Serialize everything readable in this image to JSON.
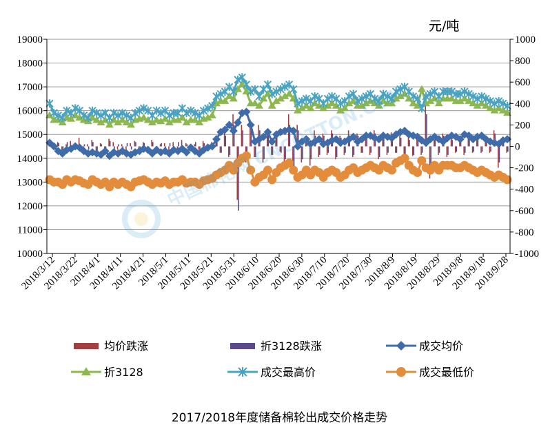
{
  "caption": "2017/2018年度储备棉轮出成交价格走势",
  "watermark": "中国棉花网 CNCOTTON.COM",
  "chart_data": {
    "type": "line",
    "unit_label": "元/吨",
    "ylim_left": [
      10000,
      19000
    ],
    "ylim_right": [
      -1000,
      1000
    ],
    "yticks_left": [
      10000,
      11000,
      12000,
      13000,
      14000,
      15000,
      16000,
      17000,
      18000,
      19000
    ],
    "yticks_right": [
      -1000,
      -800,
      -600,
      -400,
      -200,
      0,
      200,
      400,
      600,
      800,
      1000
    ],
    "x_tick_labels": [
      "2018/3/12",
      "2018/3/22",
      "2018/4/1",
      "2018/4/11",
      "2018/4/21",
      "2018/5/1",
      "2018/5/11",
      "2018/5/21",
      "2018/5/31",
      "2018/6/10",
      "2018/6/20",
      "2018/6/30",
      "2018/7/10",
      "2018/7/20",
      "2018/7/30",
      "2018/8/9",
      "2018/8/19",
      "2018/8/29",
      "2018/9/8",
      "2018/9/18",
      "2018/9/28"
    ],
    "grid": true,
    "legend_position": "bottom",
    "series": [
      {
        "name": "均价跌涨",
        "axis": "right",
        "kind": "bar",
        "color": "#a0403f",
        "values": [
          30,
          -20,
          40,
          -60,
          20,
          50,
          -30,
          80,
          -40,
          20,
          60,
          -50,
          30,
          -20,
          70,
          40,
          -30,
          20,
          -60,
          30,
          50,
          -20,
          40,
          -30,
          60,
          -40,
          20,
          30,
          -50,
          40,
          -20,
          60,
          30,
          -40,
          20,
          -30,
          50,
          -20,
          40,
          100,
          -60,
          150,
          -100,
          300,
          -500,
          200,
          -150,
          250,
          -100,
          200,
          -150,
          120,
          -80,
          100,
          -50,
          -180,
          300,
          -250,
          200,
          -150,
          100,
          -180,
          150,
          -100,
          120,
          -80,
          150,
          -120,
          100,
          -80,
          150,
          -100,
          120,
          -60,
          100,
          -80,
          150,
          -120,
          100,
          -80,
          130,
          -60,
          100,
          -120,
          80,
          -90,
          120,
          -80,
          400,
          -300,
          100,
          -80,
          120,
          -100,
          80,
          -60,
          100,
          -80,
          120,
          -60,
          80,
          -60,
          100,
          -60,
          150,
          -200,
          80,
          -60
        ]
      },
      {
        "name": "折3128跌涨",
        "axis": "right",
        "kind": "bar",
        "color": "#5b4a8a",
        "values": [
          20,
          -30,
          30,
          -40,
          40,
          -20,
          30,
          -50,
          20,
          -30,
          40,
          -40,
          20,
          -30,
          50,
          -30,
          20,
          -40,
          30,
          -30,
          40,
          -30,
          30,
          -40,
          40,
          -20,
          30,
          -50,
          30,
          -30,
          40,
          -30,
          20,
          -40,
          40,
          -30,
          30,
          -40,
          30,
          80,
          -60,
          100,
          -80,
          200,
          -600,
          150,
          -120,
          180,
          -100,
          150,
          -120,
          100,
          -80,
          90,
          -60,
          -120,
          200,
          -200,
          150,
          -120,
          80,
          -120,
          100,
          -80,
          100,
          -60,
          120,
          -100,
          80,
          -60,
          100,
          -80,
          100,
          -60,
          80,
          -60,
          120,
          -100,
          80,
          -60,
          100,
          -60,
          80,
          -100,
          60,
          -80,
          100,
          -60,
          300,
          -250,
          80,
          -60,
          100,
          -80,
          60,
          -50,
          80,
          -60,
          100,
          -50,
          60,
          -50,
          80,
          -50,
          120,
          -150,
          60,
          -50
        ]
      },
      {
        "name": "成交均价",
        "axis": "left",
        "kind": "line",
        "color": "#3f6ca8",
        "marker": "diamond",
        "values": [
          14650,
          14500,
          14300,
          14200,
          14350,
          14400,
          14500,
          14450,
          14300,
          14200,
          14250,
          14200,
          14150,
          14300,
          14100,
          14250,
          14200,
          14300,
          14200,
          14150,
          14250,
          14300,
          14400,
          14350,
          14200,
          14350,
          14250,
          14300,
          14200,
          14350,
          14300,
          14400,
          14250,
          14450,
          14300,
          14200,
          14350,
          14450,
          14500,
          14800,
          15100,
          15200,
          15400,
          15150,
          15500,
          15900,
          15950,
          15400,
          14700,
          14800,
          14900,
          15100,
          14700,
          15000,
          15100,
          15150,
          15200,
          15150,
          14500,
          14700,
          14800,
          14600,
          14700,
          14800,
          14600,
          14650,
          14750,
          14800,
          14650,
          14700,
          14800,
          14900,
          14700,
          14800,
          14950,
          14950,
          14850,
          14800,
          14950,
          14900,
          14850,
          15000,
          15100,
          15150,
          15000,
          14950,
          14900,
          14750,
          14650,
          14800,
          14900,
          14800,
          14700,
          14850,
          14950,
          14900,
          14800,
          15000,
          14950,
          14800,
          14900,
          14950,
          14800,
          14700,
          14650,
          14600,
          14750,
          14800
        ]
      },
      {
        "name": "折3128",
        "axis": "left",
        "kind": "line",
        "color": "#8db84f",
        "marker": "triangle",
        "values": [
          15800,
          15600,
          15600,
          15500,
          15700,
          15650,
          15800,
          15700,
          15600,
          15550,
          15700,
          15600,
          15500,
          15600,
          15400,
          15600,
          15500,
          15600,
          15500,
          15400,
          15600,
          15650,
          15700,
          15600,
          15500,
          15600,
          15550,
          15650,
          15500,
          15600,
          15600,
          15700,
          15500,
          15600,
          15600,
          15500,
          15650,
          15700,
          15800,
          16300,
          16400,
          16400,
          16600,
          16500,
          16900,
          17100,
          16800,
          16300,
          16300,
          16200,
          16500,
          16700,
          16200,
          16400,
          16500,
          16600,
          16700,
          16500,
          16000,
          16100,
          16200,
          16100,
          16300,
          16200,
          16100,
          16200,
          16300,
          16200,
          16000,
          16100,
          16300,
          16400,
          16200,
          16200,
          16300,
          16400,
          16300,
          16200,
          16400,
          16300,
          16300,
          16500,
          16600,
          16700,
          16500,
          16300,
          16200,
          16900,
          16300,
          16400,
          16500,
          16300,
          16500,
          16500,
          16500,
          16400,
          16400,
          16500,
          16400,
          16300,
          16200,
          16300,
          16200,
          16100,
          16000,
          16100,
          16000,
          15900
        ]
      },
      {
        "name": "成交最高价",
        "axis": "left",
        "kind": "line",
        "color": "#4aa3c0",
        "marker": "star",
        "values": [
          16300,
          15900,
          15800,
          15700,
          16000,
          15900,
          16100,
          16000,
          15800,
          15700,
          16000,
          15900,
          15800,
          15900,
          15700,
          15900,
          15800,
          15900,
          15800,
          15700,
          15900,
          16000,
          16100,
          16000,
          15800,
          16000,
          15900,
          16000,
          15800,
          15900,
          15900,
          16100,
          15900,
          16000,
          15900,
          15800,
          16000,
          16100,
          16200,
          16600,
          16700,
          16800,
          17000,
          16800,
          17300,
          17400,
          17100,
          16800,
          16900,
          16600,
          16900,
          17100,
          16700,
          16800,
          16900,
          17000,
          17100,
          16900,
          16300,
          16400,
          16500,
          16400,
          16600,
          16500,
          16300,
          16500,
          16600,
          16500,
          16300,
          16400,
          16600,
          16700,
          16400,
          16500,
          16600,
          16700,
          16500,
          16400,
          16700,
          16600,
          16500,
          16800,
          16900,
          17000,
          16800,
          16600,
          16500,
          16100,
          16600,
          16700,
          16800,
          16600,
          16800,
          16800,
          16800,
          16700,
          16700,
          16800,
          16700,
          16600,
          16500,
          16600,
          16500,
          16400,
          16300,
          16400,
          16300,
          16200
        ]
      },
      {
        "name": "成交最低价",
        "axis": "left",
        "kind": "line",
        "color": "#e28c3c",
        "marker": "circle",
        "values": [
          13100,
          13000,
          13000,
          12900,
          13100,
          13000,
          13100,
          13050,
          12950,
          12900,
          13100,
          13000,
          12900,
          13000,
          12800,
          13000,
          12900,
          13000,
          12900,
          12800,
          13000,
          13050,
          13100,
          13000,
          12900,
          13000,
          12950,
          13050,
          12900,
          13000,
          13000,
          13100,
          12950,
          13000,
          13000,
          12900,
          13050,
          13100,
          13150,
          13300,
          13400,
          13500,
          13700,
          13500,
          13800,
          14000,
          14100,
          13500,
          13000,
          13200,
          13300,
          13500,
          13100,
          13400,
          13600,
          13700,
          13800,
          13500,
          13200,
          13300,
          13500,
          13300,
          13500,
          13400,
          13200,
          13400,
          13500,
          13400,
          13200,
          13300,
          13500,
          13600,
          13400,
          13500,
          13600,
          13700,
          13600,
          13500,
          13700,
          13600,
          13500,
          13800,
          13900,
          14000,
          13700,
          13500,
          13400,
          13900,
          13600,
          13500,
          13700,
          13500,
          13700,
          13700,
          13700,
          13600,
          13600,
          13700,
          13600,
          13500,
          13400,
          13500,
          13400,
          13300,
          13200,
          13300,
          13200,
          13100
        ]
      }
    ]
  }
}
